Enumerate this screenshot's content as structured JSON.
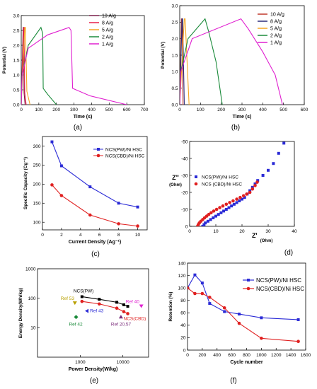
{
  "chart_data": [
    {
      "id": "a",
      "type": "line",
      "panel_label": "(a)",
      "xlabel": "Time (s)",
      "ylabel": "Potential (V)",
      "xlim": [
        0,
        700
      ],
      "ylim": [
        0.0,
        3.0
      ],
      "xticks": [
        0,
        100,
        200,
        300,
        400,
        500,
        600,
        700
      ],
      "yticks": [
        0.0,
        0.5,
        1.0,
        1.5,
        2.0,
        2.5,
        3.0
      ],
      "legend_position": "top-right",
      "series": [
        {
          "name": "10 A/g",
          "color": "#7a1f4a",
          "points": [
            [
              0,
              0
            ],
            [
              11,
              2.6
            ],
            [
              13,
              2.6
            ],
            [
              16,
              0.4
            ],
            [
              22,
              0
            ]
          ]
        },
        {
          "name": "8 A/g",
          "color": "#e8204a",
          "points": [
            [
              0,
              0
            ],
            [
              14,
              2.6
            ],
            [
              16,
              2.6
            ],
            [
              20,
              0.4
            ],
            [
              28,
              0
            ]
          ]
        },
        {
          "name": "5 A/g",
          "color": "#f5a623",
          "points": [
            [
              0,
              0
            ],
            [
              20,
              2.6
            ],
            [
              24,
              2.6
            ],
            [
              32,
              0.45
            ],
            [
              50,
              0
            ]
          ]
        },
        {
          "name": "2 A/g",
          "color": "#1a8a3a",
          "points": [
            [
              0,
              0
            ],
            [
              5,
              1.0
            ],
            [
              40,
              2.0
            ],
            [
              112,
              2.6
            ],
            [
              122,
              2.4
            ],
            [
              125,
              0.55
            ],
            [
              150,
              0.35
            ],
            [
              200,
              0
            ]
          ]
        },
        {
          "name": "1 A/g",
          "color": "#e020d0",
          "points": [
            [
              0,
              0
            ],
            [
              5,
              1.0
            ],
            [
              40,
              1.9
            ],
            [
              150,
              2.35
            ],
            [
              272,
              2.6
            ],
            [
              283,
              2.5
            ],
            [
              292,
              0.55
            ],
            [
              390,
              0.3
            ],
            [
              600,
              0
            ]
          ]
        }
      ]
    },
    {
      "id": "b",
      "type": "line",
      "panel_label": "(b)",
      "xlabel": "Time (s)",
      "ylabel": "Potential (V)",
      "xlim": [
        0,
        600
      ],
      "ylim": [
        0.0,
        3.0
      ],
      "xticks": [
        0,
        100,
        200,
        300,
        400,
        500,
        600
      ],
      "yticks": [
        0.0,
        0.5,
        1.0,
        1.5,
        2.0,
        2.5,
        3.0
      ],
      "legend_position": "top-right",
      "series": [
        {
          "name": "10 A/g",
          "color": "#c0392b",
          "points": [
            [
              0,
              0
            ],
            [
              8,
              2.6
            ],
            [
              11,
              2.6
            ],
            [
              16,
              0
            ]
          ]
        },
        {
          "name": "8 A/g",
          "color": "#2a2a7a",
          "points": [
            [
              0,
              0
            ],
            [
              11,
              2.6
            ],
            [
              14,
              2.6
            ],
            [
              22,
              0
            ]
          ]
        },
        {
          "name": "5 A/g",
          "color": "#f5a623",
          "points": [
            [
              0,
              0
            ],
            [
              22,
              2.6
            ],
            [
              26,
              2.6
            ],
            [
              45,
              0
            ]
          ]
        },
        {
          "name": "2 A/g",
          "color": "#1a8a3a",
          "points": [
            [
              0,
              0
            ],
            [
              5,
              1.0
            ],
            [
              40,
              2.0
            ],
            [
              122,
              2.6
            ],
            [
              140,
              2.2
            ],
            [
              175,
              1.3
            ],
            [
              205,
              0
            ]
          ]
        },
        {
          "name": "1 A/g",
          "color": "#e020d0",
          "points": [
            [
              0,
              0
            ],
            [
              5,
              1.0
            ],
            [
              60,
              2.0
            ],
            [
              295,
              2.6
            ],
            [
              330,
              2.3
            ],
            [
              400,
              1.6
            ],
            [
              460,
              0.9
            ],
            [
              495,
              0
            ]
          ]
        }
      ]
    },
    {
      "id": "c",
      "type": "line",
      "panel_label": "(c)",
      "xlabel": "Current Density (Ag⁻¹)",
      "ylabel": "Specific Capacity (Cg⁻¹)",
      "xlim": [
        0,
        11
      ],
      "ylim": [
        80,
        325
      ],
      "xticks": [
        0,
        2,
        4,
        6,
        8,
        10
      ],
      "yticks": [
        100,
        150,
        200,
        250,
        300
      ],
      "legend_position": "top-right",
      "series": [
        {
          "name": "NCS(PW)/Ni HSC",
          "color": "#2b2bd6",
          "marker": "square",
          "points": [
            [
              1,
              311
            ],
            [
              2,
              248
            ],
            [
              5,
              193
            ],
            [
              8,
              150
            ],
            [
              10,
              140
            ]
          ]
        },
        {
          "name": "NCS(CBD)/Ni HSC",
          "color": "#e02020",
          "marker": "circle",
          "points": [
            [
              1,
              198
            ],
            [
              2,
              170
            ],
            [
              5,
              119
            ],
            [
              8,
              96
            ],
            [
              10,
              90
            ]
          ]
        }
      ]
    },
    {
      "id": "d",
      "type": "scatter",
      "panel_label": "(d)",
      "xlabel": "Z'",
      "xlabel_sub": "(Ohm)",
      "ylabel": "Z\"",
      "ylabel_sub": "(Ohm)",
      "xlim": [
        0,
        40
      ],
      "ylim": [
        0,
        -50
      ],
      "xticks": [
        0,
        10,
        20,
        30,
        40
      ],
      "yticks": [
        0,
        -10,
        -20,
        -30,
        -40,
        -50
      ],
      "legend_position": "top-left",
      "series": [
        {
          "name": "NCS(PW)/Ni HSC",
          "color": "#2b2bd6",
          "marker": "square",
          "points": [
            [
              5,
              0
            ],
            [
              5.5,
              -1
            ],
            [
              6,
              -2
            ],
            [
              7,
              -3
            ],
            [
              8,
              -4
            ],
            [
              9,
              -5
            ],
            [
              10,
              -6
            ],
            [
              11,
              -7
            ],
            [
              12,
              -8
            ],
            [
              13,
              -9
            ],
            [
              14,
              -10
            ],
            [
              15,
              -11
            ],
            [
              16,
              -12
            ],
            [
              17,
              -13
            ],
            [
              18,
              -14
            ],
            [
              19,
              -15
            ],
            [
              20,
              -16
            ],
            [
              21,
              -17
            ],
            [
              22,
              -19
            ],
            [
              23,
              -21
            ],
            [
              24,
              -23
            ],
            [
              25,
              -25
            ],
            [
              26,
              -27
            ],
            [
              28,
              -30
            ],
            [
              30,
              -33
            ],
            [
              32,
              -37
            ],
            [
              34,
              -43
            ],
            [
              36,
              -49
            ]
          ]
        },
        {
          "name": "NCS (CBD)/Ni HSC",
          "color": "#e02020",
          "marker": "circle",
          "points": [
            [
              3,
              0
            ],
            [
              3.3,
              -1
            ],
            [
              3.7,
              -2
            ],
            [
              4.3,
              -3
            ],
            [
              5,
              -4
            ],
            [
              5.7,
              -5
            ],
            [
              6.5,
              -6
            ],
            [
              7.3,
              -7
            ],
            [
              8.2,
              -8
            ],
            [
              9.2,
              -9
            ],
            [
              10.3,
              -10
            ],
            [
              11.5,
              -11
            ],
            [
              12.7,
              -12
            ],
            [
              14,
              -13
            ],
            [
              15.3,
              -14
            ],
            [
              16.6,
              -15
            ],
            [
              18,
              -16
            ],
            [
              19.3,
              -17
            ],
            [
              20.6,
              -18
            ],
            [
              21.8,
              -19
            ],
            [
              23,
              -20
            ],
            [
              24,
              -22
            ],
            [
              25,
              -24
            ],
            [
              25.8,
              -26
            ]
          ]
        }
      ]
    },
    {
      "id": "e",
      "type": "scatter",
      "panel_label": "(e)",
      "xlabel": "Power Density(W/kg)",
      "ylabel": "Energy Density(Wh/kg)",
      "xscale": "log",
      "yscale": "log",
      "xlim": [
        100,
        40000
      ],
      "ylim": [
        1,
        1000
      ],
      "xticks": [
        {
          "v": 1000,
          "label": "1000"
        },
        {
          "v": 10000,
          "label": "10000"
        }
      ],
      "yticks": [
        {
          "v": 10,
          "label": "10"
        },
        {
          "v": 100,
          "label": "100"
        },
        {
          "v": 1000,
          "label": "1000"
        }
      ],
      "series": [
        {
          "name": "NCS(PW)",
          "color": "#000000",
          "marker": "square",
          "points": [
            [
              1100,
              113
            ],
            [
              2800,
              92
            ],
            [
              7200,
              73
            ],
            [
              10500,
              60
            ],
            [
              13000,
              53
            ]
          ]
        },
        {
          "name": "NCS(CBD)",
          "color": "#e02020",
          "marker": "circle",
          "points": [
            [
              1100,
              78
            ],
            [
              2800,
              64
            ],
            [
              7200,
              46
            ],
            [
              10500,
              35
            ],
            [
              13000,
              30
            ]
          ]
        }
      ],
      "references": [
        {
          "label": "Ref 53",
          "color": "#b8a000",
          "x": 750,
          "y": 70
        },
        {
          "label": "Ref 43",
          "color": "#2b2bd6",
          "x": 1450,
          "y": 37
        },
        {
          "label": "Ref 42",
          "color": "#1a8a3a",
          "x": 800,
          "y": 23
        },
        {
          "label": "Ref 20,57",
          "color": "#7a2a7a",
          "x": 9000,
          "y": 23
        },
        {
          "label": "Ref 40",
          "color": "#e020d0",
          "x": 27000,
          "y": 55
        }
      ]
    },
    {
      "id": "f",
      "type": "line",
      "panel_label": "(f)",
      "xlabel": "Cycle number",
      "ylabel": "Retention (%)",
      "xlim": [
        0,
        1600
      ],
      "ylim": [
        0,
        140
      ],
      "xticks": [
        0,
        200,
        400,
        600,
        800,
        1000,
        1200,
        1400,
        1600
      ],
      "yticks": [
        0,
        20,
        40,
        60,
        80,
        100,
        120,
        140
      ],
      "legend_position": "top-right",
      "series": [
        {
          "name": "NCS(PW)/Ni HSC",
          "color": "#2b2bd6",
          "marker": "square",
          "points": [
            [
              0,
              100
            ],
            [
              100,
              121
            ],
            [
              200,
              108
            ],
            [
              300,
              75
            ],
            [
              500,
              62
            ],
            [
              700,
              58
            ],
            [
              1000,
              52
            ],
            [
              1500,
              49
            ]
          ]
        },
        {
          "name": "NCS(CBD)/Ni HSC",
          "color": "#e02020",
          "marker": "circle",
          "points": [
            [
              0,
              100
            ],
            [
              100,
              91
            ],
            [
              200,
              91
            ],
            [
              300,
              85
            ],
            [
              500,
              68
            ],
            [
              700,
              43
            ],
            [
              1000,
              19
            ],
            [
              1500,
              14
            ]
          ]
        }
      ]
    }
  ]
}
